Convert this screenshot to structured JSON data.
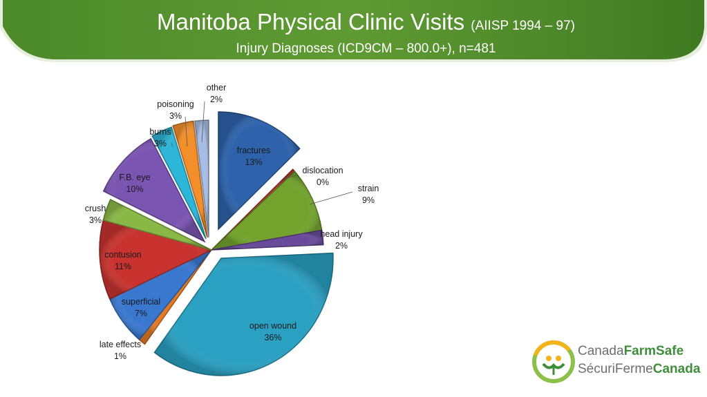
{
  "header": {
    "title": "Manitoba Physical Clinic Visits",
    "title_sub": "(AIISP 1994 – 97)",
    "subtitle": "Injury Diagnoses (ICD9CM – 800.0+), n=481",
    "banner_color": "#4e8a2e"
  },
  "chart_data": {
    "type": "pie",
    "exploded": true,
    "slices": [
      {
        "label": "fractures",
        "value": 13,
        "display": "13%",
        "color": "#2e63ab"
      },
      {
        "label": "dislocation",
        "value": 0.4,
        "display": "0%",
        "color": "#b33a30"
      },
      {
        "label": "strain",
        "value": 9,
        "display": "9%",
        "color": "#73a32d"
      },
      {
        "label": "head injury",
        "value": 2,
        "display": "2%",
        "color": "#6a4b9b"
      },
      {
        "label": "open wound",
        "value": 36,
        "display": "36%",
        "color": "#2aa0c2"
      },
      {
        "label": "late effects",
        "value": 1,
        "display": "1%",
        "color": "#e07a25"
      },
      {
        "label": "superficial",
        "value": 7,
        "display": "7%",
        "color": "#3a78d0"
      },
      {
        "label": "contusion",
        "value": 11,
        "display": "11%",
        "color": "#c8332f"
      },
      {
        "label": "crush",
        "value": 3,
        "display": "3%",
        "color": "#8ab846"
      },
      {
        "label": "F.B. eye",
        "value": 10,
        "display": "10%",
        "color": "#7b55b2"
      },
      {
        "label": "burns",
        "value": 3,
        "display": "3%",
        "color": "#2db6d8"
      },
      {
        "label": "poisoning",
        "value": 3,
        "display": "3%",
        "color": "#f28f2a"
      },
      {
        "label": "other",
        "value": 2,
        "display": "2%",
        "color": "#a7bde3"
      }
    ]
  },
  "logo": {
    "line1_a": "Canada",
    "line1_b": "FarmSafe",
    "line2_a": "SécuriFerme",
    "line2_b": "Canada"
  }
}
